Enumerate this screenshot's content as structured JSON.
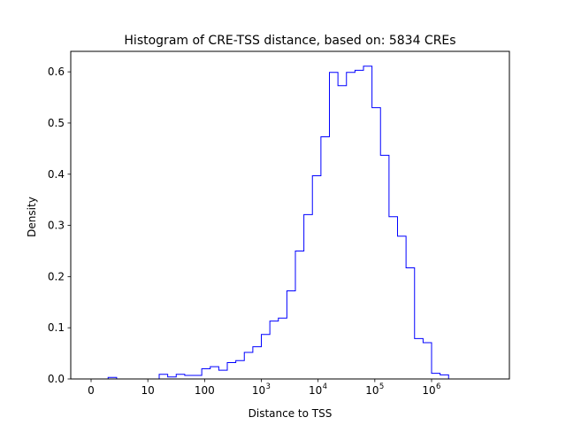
{
  "chart_data": {
    "type": "bar",
    "title": "Histogram of CRE-TSS distance, based on: 5834 CREs",
    "xlabel": "Distance to TSS",
    "ylabel": "Density",
    "x_scale": "log (value + 1)",
    "histtype": "step",
    "series_color": "#0000ff",
    "grid": false,
    "xlim_tick_positions": [
      0,
      1,
      2,
      3,
      4,
      5,
      6
    ],
    "xticks": [
      {
        "pos": 0,
        "label": "0",
        "sup": ""
      },
      {
        "pos": 1,
        "label": "10",
        "sup": ""
      },
      {
        "pos": 2,
        "label": "100",
        "sup": ""
      },
      {
        "pos": 3,
        "label": "10",
        "sup": "3"
      },
      {
        "pos": 4,
        "label": "10",
        "sup": "4"
      },
      {
        "pos": 5,
        "label": "10",
        "sup": "5"
      },
      {
        "pos": 6,
        "label": "10",
        "sup": "6"
      }
    ],
    "ylim": [
      0,
      0.64
    ],
    "yticks": [
      "0.0",
      "0.1",
      "0.2",
      "0.3",
      "0.4",
      "0.5",
      "0.6"
    ],
    "bin_edges_log10": [
      0.0,
      0.15,
      0.3,
      0.45,
      0.6,
      0.75,
      0.9,
      1.05,
      1.2,
      1.35,
      1.5,
      1.65,
      1.8,
      1.95,
      2.1,
      2.25,
      2.4,
      2.55,
      2.7,
      2.85,
      3.0,
      3.15,
      3.3,
      3.45,
      3.6,
      3.75,
      3.9,
      4.05,
      4.2,
      4.35,
      4.5,
      4.65,
      4.8,
      4.95,
      5.1,
      5.25,
      5.4,
      5.55,
      5.7,
      5.85,
      6.0,
      6.15,
      6.3,
      6.45,
      6.6,
      6.75,
      6.9,
      7.0
    ],
    "density": [
      0.0,
      0.0,
      0.003,
      0.0,
      0.0,
      0.0,
      0.0,
      0.0,
      0.009,
      0.004,
      0.009,
      0.007,
      0.007,
      0.02,
      0.024,
      0.017,
      0.032,
      0.036,
      0.052,
      0.063,
      0.087,
      0.113,
      0.119,
      0.172,
      0.25,
      0.321,
      0.397,
      0.473,
      0.599,
      0.573,
      0.599,
      0.603,
      0.611,
      0.53,
      0.437,
      0.317,
      0.279,
      0.217,
      0.079,
      0.071,
      0.011,
      0.008,
      0.0,
      0.0,
      0.0,
      0.0,
      0.0
    ]
  }
}
